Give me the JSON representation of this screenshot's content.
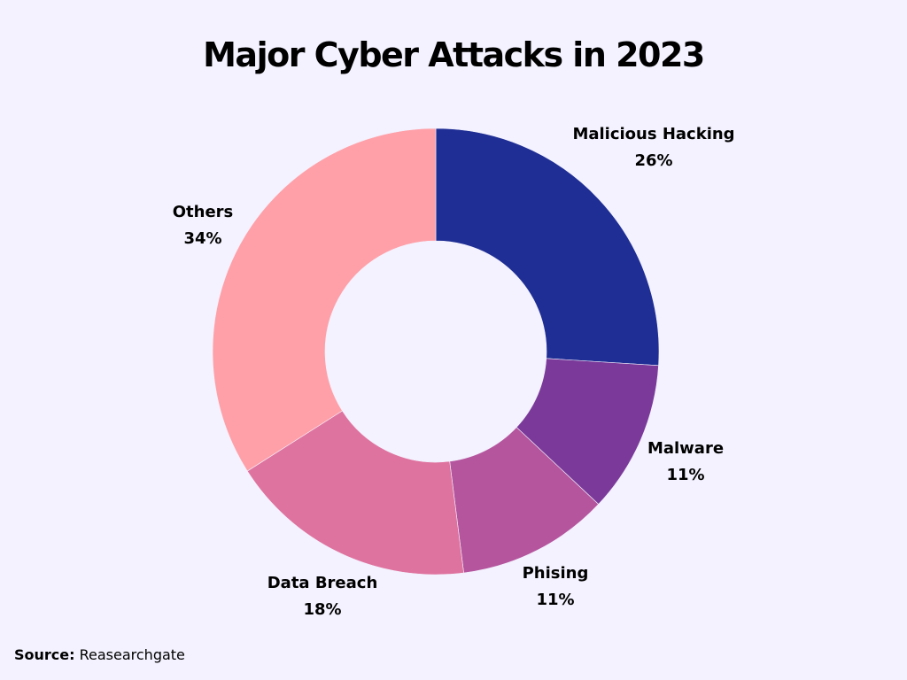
{
  "chart_data": {
    "type": "pie",
    "donut": true,
    "title": "Major Cyber Attacks in 2023",
    "start": "top",
    "direction": "clockwise",
    "slices": [
      {
        "label": "Malicious Hacking",
        "value": 26,
        "display": "26%",
        "color": "#1f2e94"
      },
      {
        "label": "Malware",
        "value": 11,
        "display": "11%",
        "color": "#7b3a9a"
      },
      {
        "label": "Phising",
        "value": 11,
        "display": "11%",
        "color": "#b5559e"
      },
      {
        "label": "Data Breach",
        "value": 18,
        "display": "18%",
        "color": "#df739f"
      },
      {
        "label": "Others",
        "value": 34,
        "display": "34%",
        "color": "#ffa0a8"
      }
    ]
  },
  "source": {
    "label": "Source:",
    "value": "Reasearchgate"
  },
  "background": "#f3f2fe"
}
